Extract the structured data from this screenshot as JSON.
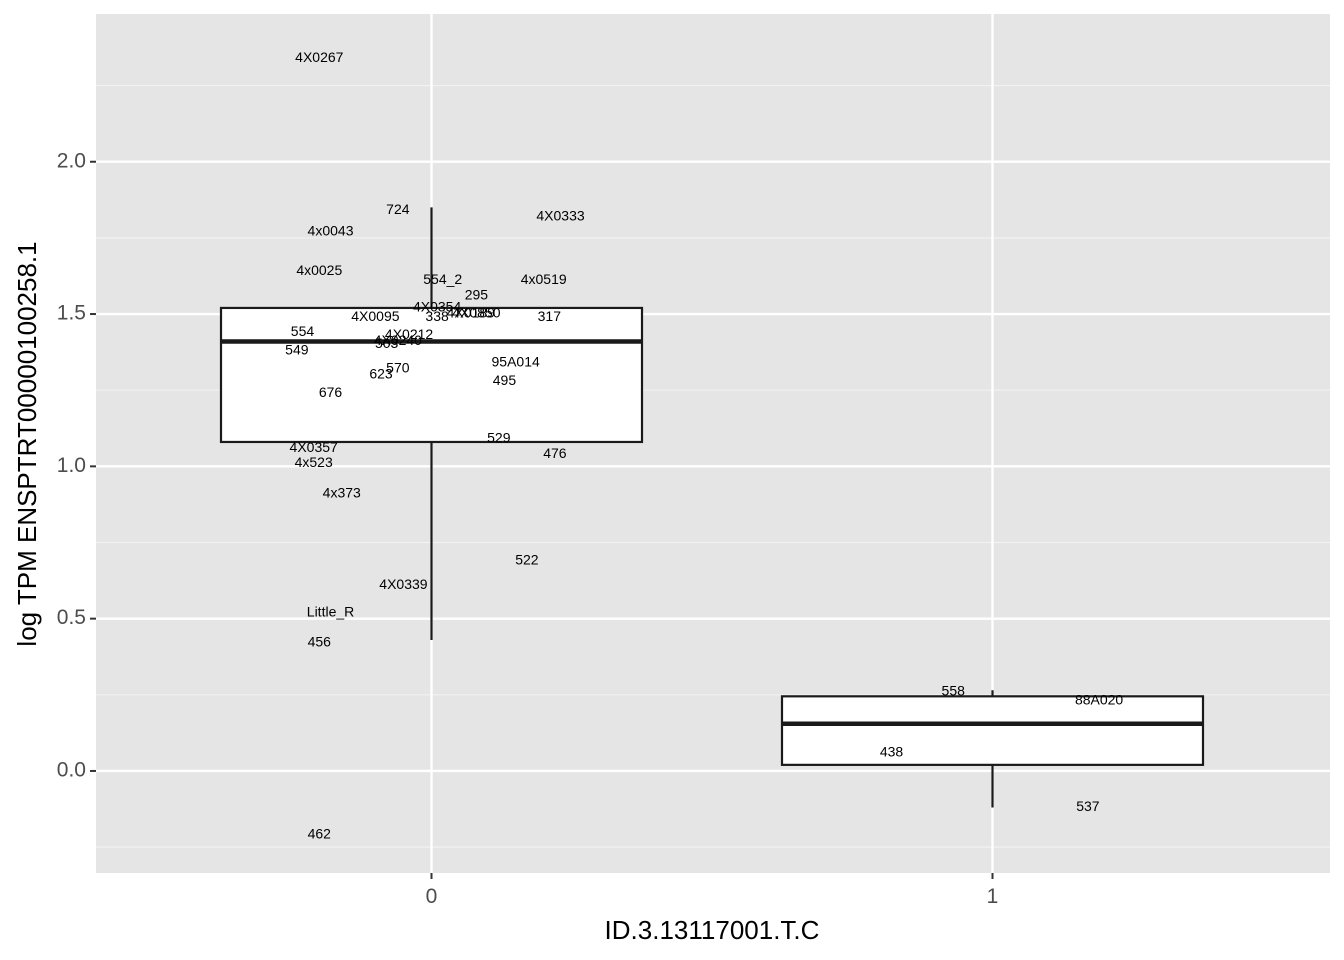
{
  "chart_data": {
    "type": "boxplot",
    "xlabel": "ID.3.13117001.T.C",
    "ylabel": "log TPM ENSPTRT00000100258.1",
    "ylim": [
      -0.335,
      2.485
    ],
    "y_ticks": [
      0.0,
      0.5,
      1.0,
      1.5,
      2.0
    ],
    "y_tick_labels": [
      "0.0",
      "0.5",
      "1.0",
      "1.5",
      "2.0"
    ],
    "grid": true,
    "groups": [
      {
        "name": "0",
        "box": {
          "whisker_low": 0.43,
          "q1": 1.08,
          "median": 1.41,
          "q3": 1.52,
          "whisker_high": 1.85
        },
        "points": [
          {
            "label": "4X0267",
            "x": -0.2,
            "y": 2.34
          },
          {
            "label": "724",
            "x": -0.06,
            "y": 1.84
          },
          {
            "label": "4X0333",
            "x": 0.23,
            "y": 1.82
          },
          {
            "label": "4x0043",
            "x": -0.18,
            "y": 1.77
          },
          {
            "label": "4x0025",
            "x": -0.2,
            "y": 1.64
          },
          {
            "label": "554_2",
            "x": 0.02,
            "y": 1.61
          },
          {
            "label": "4x0519",
            "x": 0.2,
            "y": 1.61
          },
          {
            "label": "295",
            "x": 0.08,
            "y": 1.56
          },
          {
            "label": "4X0354",
            "x": 0.01,
            "y": 1.52
          },
          {
            "label": "4X0850",
            "x": 0.08,
            "y": 1.5
          },
          {
            "label": "4X0095",
            "x": -0.1,
            "y": 1.49
          },
          {
            "label": "338",
            "x": 0.01,
            "y": 1.49
          },
          {
            "label": "4X0189",
            "x": 0.07,
            "y": 1.5
          },
          {
            "label": "317",
            "x": 0.21,
            "y": 1.49
          },
          {
            "label": "554",
            "x": -0.23,
            "y": 1.44
          },
          {
            "label": "4X0212",
            "x": -0.04,
            "y": 1.43
          },
          {
            "label": "4X0240",
            "x": -0.06,
            "y": 1.41
          },
          {
            "label": "503",
            "x": -0.08,
            "y": 1.4
          },
          {
            "label": "549",
            "x": -0.24,
            "y": 1.38
          },
          {
            "label": "95A014",
            "x": 0.15,
            "y": 1.34
          },
          {
            "label": "570",
            "x": -0.06,
            "y": 1.32
          },
          {
            "label": "623",
            "x": -0.09,
            "y": 1.3
          },
          {
            "label": "495",
            "x": 0.13,
            "y": 1.28
          },
          {
            "label": "676",
            "x": -0.18,
            "y": 1.24
          },
          {
            "label": "529",
            "x": 0.12,
            "y": 1.09
          },
          {
            "label": "4X0357",
            "x": -0.21,
            "y": 1.06
          },
          {
            "label": "476",
            "x": 0.22,
            "y": 1.04
          },
          {
            "label": "4x523",
            "x": -0.21,
            "y": 1.01
          },
          {
            "label": "4x373",
            "x": -0.16,
            "y": 0.91
          },
          {
            "label": "522",
            "x": 0.17,
            "y": 0.69
          },
          {
            "label": "4X0339",
            "x": -0.05,
            "y": 0.61
          },
          {
            "label": "Little_R",
            "x": -0.18,
            "y": 0.52
          },
          {
            "label": "456",
            "x": -0.2,
            "y": 0.42
          },
          {
            "label": "462",
            "x": -0.2,
            "y": -0.21
          }
        ]
      },
      {
        "name": "1",
        "box": {
          "whisker_low": -0.12,
          "q1": 0.02,
          "median": 0.155,
          "q3": 0.245,
          "whisker_high": 0.265
        },
        "points": [
          {
            "label": "558",
            "x": 0.93,
            "y": 0.26
          },
          {
            "label": "88A020",
            "x": 1.19,
            "y": 0.23
          },
          {
            "label": "438",
            "x": 0.82,
            "y": 0.06
          },
          {
            "label": "537",
            "x": 1.17,
            "y": -0.12
          }
        ]
      }
    ]
  }
}
